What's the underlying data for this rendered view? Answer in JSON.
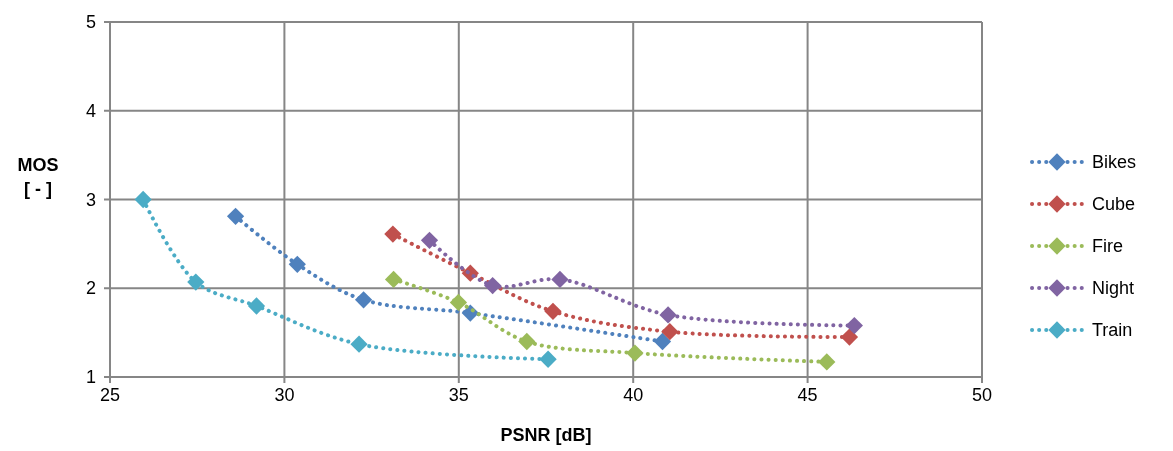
{
  "chart_data": {
    "type": "line",
    "xlabel": "PSNR [dB]",
    "ylabel": "MOS\n[ - ]",
    "xlim": [
      25,
      50
    ],
    "xticks": [
      25,
      30,
      35,
      40,
      45,
      50
    ],
    "ylim": [
      1,
      5
    ],
    "yticks": [
      1,
      2,
      3,
      4,
      5
    ],
    "grid": true,
    "legend": "right",
    "marker": "diamond",
    "line_style": "dotted",
    "series": [
      {
        "name": "Bikes",
        "color": "#4f81bd",
        "x": [
          28.6,
          30.37,
          32.27,
          35.33,
          40.84
        ],
        "values": [
          2.81,
          2.27,
          1.87,
          1.72,
          1.4
        ]
      },
      {
        "name": "Cube",
        "color": "#c0504d",
        "x": [
          33.11,
          35.33,
          37.7,
          41.05,
          46.2
        ],
        "values": [
          2.61,
          2.17,
          1.74,
          1.51,
          1.45
        ]
      },
      {
        "name": "Fire",
        "color": "#9bbb59",
        "x": [
          33.13,
          34.99,
          36.95,
          40.05,
          45.55
        ],
        "values": [
          2.1,
          1.84,
          1.4,
          1.27,
          1.17
        ]
      },
      {
        "name": "Night",
        "color": "#8064a2",
        "x": [
          34.16,
          35.97,
          37.9,
          41,
          46.34
        ],
        "values": [
          2.54,
          2.03,
          2.1,
          1.7,
          1.58
        ]
      },
      {
        "name": "Train",
        "color": "#4bacc6",
        "x": [
          25.95,
          27.46,
          29.2,
          32.14,
          37.56
        ],
        "values": [
          3,
          2.07,
          1.8,
          1.37,
          1.2
        ]
      }
    ]
  }
}
